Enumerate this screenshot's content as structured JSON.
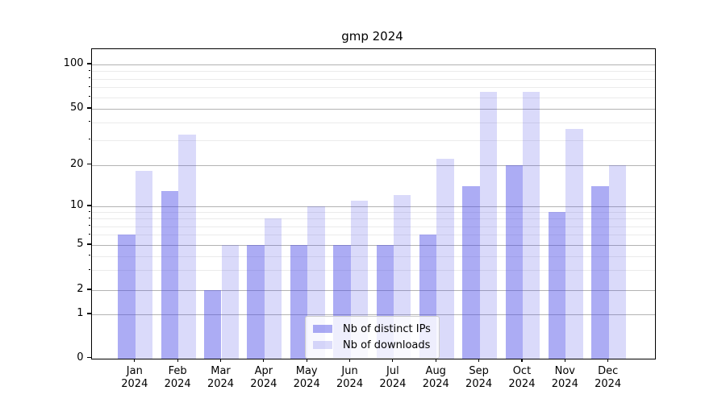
{
  "title": "gmp 2024",
  "chart_data": {
    "type": "bar",
    "title": "gmp 2024",
    "categories": [
      "Jan 2024",
      "Feb 2024",
      "Mar 2024",
      "Apr 2024",
      "May 2024",
      "Jun 2024",
      "Jul 2024",
      "Aug 2024",
      "Sep 2024",
      "Oct 2024",
      "Nov 2024",
      "Dec 2024"
    ],
    "months": [
      "Jan",
      "Feb",
      "Mar",
      "Apr",
      "May",
      "Jun",
      "Jul",
      "Aug",
      "Sep",
      "Oct",
      "Nov",
      "Dec"
    ],
    "year": "2024",
    "series": [
      {
        "name": "Nb of distinct IPs",
        "values": [
          6,
          13,
          2,
          5,
          5,
          5,
          5,
          6,
          14,
          20,
          9,
          14
        ],
        "color": "rgba(70,70,230,0.45)"
      },
      {
        "name": "Nb of downloads",
        "values": [
          18,
          33,
          5,
          8,
          10,
          11,
          12,
          22,
          65,
          65,
          36,
          20
        ],
        "color": "rgba(70,70,230,0.2)"
      }
    ],
    "yscale": "symlog",
    "yticks": [
      0,
      1,
      2,
      5,
      10,
      20,
      50,
      100
    ],
    "minor_gridlines": [
      3,
      4,
      6,
      7,
      8,
      9,
      30,
      40,
      60,
      70,
      80,
      90
    ],
    "ylim": [
      0,
      128
    ],
    "grid": true,
    "legend_position": "lower center"
  },
  "colors": {
    "bar_distinct_ips": "rgba(70,70,230,0.45)",
    "bar_downloads": "rgba(70,70,230,0.2)",
    "grid_major": "#b3b3b3",
    "grid_minor": "#ebebeb",
    "spine": "#000000",
    "legend_border": "#cccccc"
  }
}
